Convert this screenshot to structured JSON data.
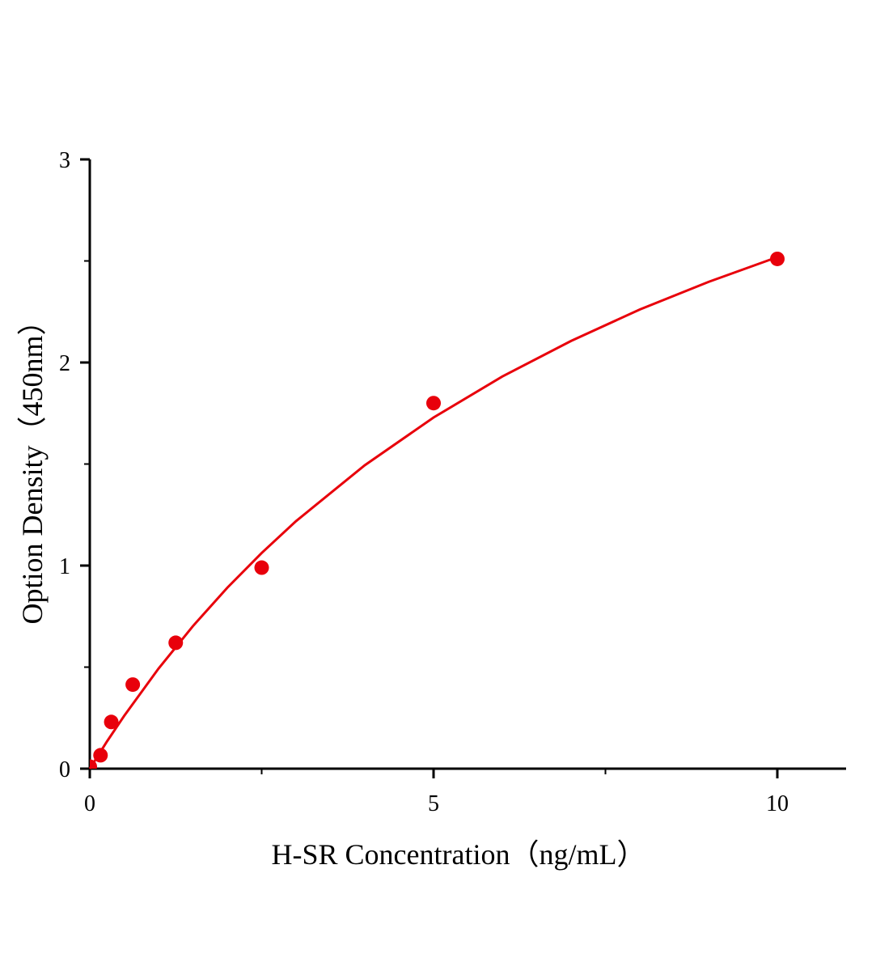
{
  "chart_data": {
    "type": "scatter",
    "title": "",
    "xlabel": "H-SR Concentration（ng/mL）",
    "ylabel": "Option Density（450nm）",
    "xlim": [
      0,
      11
    ],
    "ylim": [
      0,
      3
    ],
    "x_ticks": [
      0,
      5,
      10
    ],
    "x_minor_ticks": [
      2.5,
      7.5
    ],
    "y_ticks": [
      0,
      1,
      2,
      3
    ],
    "y_minor_ticks": [
      0.5,
      1.5,
      2.5
    ],
    "grid": false,
    "color": "#e8000b",
    "points": [
      {
        "x": 0,
        "y": 0.01
      },
      {
        "x": 0.156,
        "y": 0.066
      },
      {
        "x": 0.3125,
        "y": 0.23
      },
      {
        "x": 0.625,
        "y": 0.414
      },
      {
        "x": 1.25,
        "y": 0.62
      },
      {
        "x": 2.5,
        "y": 0.99
      },
      {
        "x": 5,
        "y": 1.8
      },
      {
        "x": 10,
        "y": 2.51
      }
    ],
    "fit_curve": {
      "x": [
        0,
        0.25,
        0.5,
        1,
        1.5,
        2,
        2.5,
        3,
        4,
        5,
        6,
        7,
        8,
        9,
        10
      ],
      "y": [
        0,
        0.134,
        0.26,
        0.493,
        0.702,
        0.891,
        1.062,
        1.219,
        1.494,
        1.729,
        1.931,
        2.106,
        2.261,
        2.397,
        2.519
      ]
    }
  }
}
